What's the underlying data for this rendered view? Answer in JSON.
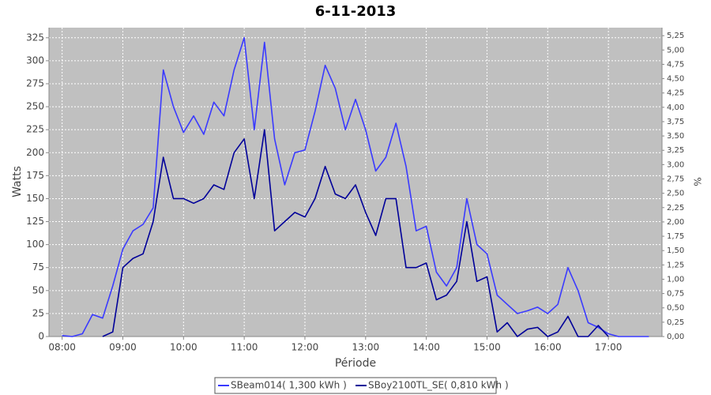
{
  "chart_data": {
    "type": "line",
    "title": "6-11-2013",
    "x_label": "Période",
    "y_label": "Watts",
    "y2_label": "%",
    "x": [
      "08:00",
      "08:10",
      "08:20",
      "08:30",
      "08:40",
      "08:50",
      "09:00",
      "09:10",
      "09:20",
      "09:30",
      "09:40",
      "09:50",
      "10:00",
      "10:10",
      "10:20",
      "10:30",
      "10:40",
      "10:50",
      "11:00",
      "11:10",
      "11:20",
      "11:30",
      "11:40",
      "11:50",
      "12:00",
      "12:10",
      "12:20",
      "12:30",
      "12:40",
      "12:50",
      "13:00",
      "13:10",
      "13:20",
      "13:30",
      "13:40",
      "13:50",
      "14:00",
      "14:10",
      "14:20",
      "14:30",
      "14:40",
      "14:50",
      "15:00",
      "15:10",
      "15:20",
      "15:30",
      "15:40",
      "15:50",
      "16:00",
      "16:10",
      "16:20",
      "16:30",
      "16:40",
      "16:50",
      "17:00",
      "17:10",
      "17:20",
      "17:30",
      "17:40"
    ],
    "series": [
      {
        "name": "SBeam014( 1,300 kWh )",
        "color": "#3a3aff",
        "values": [
          1,
          0,
          3,
          24,
          20,
          55,
          95,
          115,
          122,
          140,
          290,
          250,
          222,
          240,
          220,
          255,
          240,
          290,
          325,
          225,
          320,
          215,
          165,
          200,
          203,
          245,
          295,
          270,
          225,
          258,
          225,
          180,
          195,
          232,
          185,
          115,
          120,
          70,
          55,
          75,
          150,
          100,
          90,
          45,
          35,
          25,
          28,
          32,
          25,
          35,
          75,
          50,
          15,
          10,
          3,
          0,
          0,
          0,
          0
        ]
      },
      {
        "name": "SBoy2100TL_SE( 0,810 kWh )",
        "color": "#000099",
        "values": [
          null,
          null,
          null,
          null,
          0,
          5,
          75,
          85,
          90,
          125,
          195,
          150,
          150,
          145,
          150,
          165,
          160,
          200,
          215,
          150,
          225,
          115,
          125,
          135,
          130,
          150,
          185,
          155,
          150,
          165,
          135,
          110,
          150,
          150,
          75,
          75,
          80,
          40,
          45,
          60,
          125,
          60,
          65,
          5,
          15,
          0,
          8,
          10,
          0,
          5,
          22,
          0,
          0,
          12,
          0,
          null,
          null,
          null,
          null
        ]
      }
    ],
    "xlim": [
      "07:47",
      "17:53"
    ],
    "xticks": [
      "08:00",
      "09:00",
      "10:00",
      "11:00",
      "12:00",
      "13:00",
      "14:00",
      "15:00",
      "16:00",
      "17:00"
    ],
    "ylim": [
      0,
      336
    ],
    "yticks": [
      0,
      25,
      50,
      75,
      100,
      125,
      150,
      175,
      200,
      225,
      250,
      275,
      300,
      325
    ],
    "y2lim": [
      0,
      5.39
    ],
    "y2ticks": [
      {
        "value": 0,
        "label": "0,00"
      },
      {
        "value": 0.25,
        "label": "0,25"
      },
      {
        "value": 0.5,
        "label": "0,50"
      },
      {
        "value": 0.75,
        "label": "0,75"
      },
      {
        "value": 1,
        "label": "1,00"
      },
      {
        "value": 1.25,
        "label": "1,25"
      },
      {
        "value": 1.5,
        "label": "1,50"
      },
      {
        "value": 1.75,
        "label": "1,75"
      },
      {
        "value": 2,
        "label": "2,00"
      },
      {
        "value": 2.25,
        "label": "2,25"
      },
      {
        "value": 2.5,
        "label": "2,50"
      },
      {
        "value": 2.75,
        "label": "2,75"
      },
      {
        "value": 3,
        "label": "3,00"
      },
      {
        "value": 3.25,
        "label": "3,25"
      },
      {
        "value": 3.5,
        "label": "3,50"
      },
      {
        "value": 3.75,
        "label": "3,75"
      },
      {
        "value": 4,
        "label": "4,00"
      },
      {
        "value": 4.25,
        "label": "4,25"
      },
      {
        "value": 4.5,
        "label": "4,50"
      },
      {
        "value": 4.75,
        "label": "4,75"
      },
      {
        "value": 5,
        "label": "5,00"
      },
      {
        "value": 5.25,
        "label": "5,25"
      }
    ],
    "grid": true
  }
}
